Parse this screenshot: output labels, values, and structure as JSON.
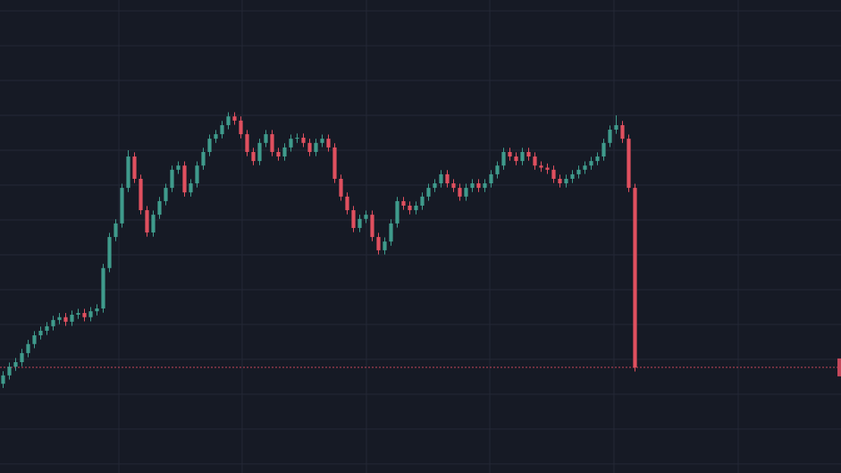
{
  "chart_data": {
    "type": "candlestick",
    "up_color": "#3f9b8c",
    "down_color": "#e0505f",
    "background": "#161a25",
    "grid_color": "#242836",
    "grid": true,
    "xlim": [
      -0.5,
      133.93
    ],
    "xticks": [
      18.5,
      38.21,
      58.07,
      77.79,
      97.64,
      117.5
    ],
    "ylim": [
      -0.26,
      13.31
    ],
    "yticks": [
      0,
      1,
      2,
      3,
      4,
      5,
      6,
      7,
      8,
      9,
      10,
      11,
      12,
      13
    ],
    "reference_line": {
      "value": 2.77,
      "color": "#c4475a"
    },
    "x": [
      0,
      1,
      2,
      3,
      4,
      5,
      6,
      7,
      8,
      9,
      10,
      11,
      12,
      13,
      14,
      15,
      16,
      17,
      18,
      19,
      20,
      21,
      22,
      23,
      24,
      25,
      26,
      27,
      28,
      29,
      30,
      31,
      32,
      33,
      34,
      35,
      36,
      37,
      38,
      39,
      40,
      41,
      42,
      43,
      44,
      45,
      46,
      47,
      48,
      49,
      50,
      51,
      52,
      53,
      54,
      55,
      56,
      57,
      58,
      59,
      60,
      61,
      62,
      63,
      64,
      65,
      66,
      67,
      68,
      69,
      70,
      71,
      72,
      73,
      74,
      75,
      76,
      77,
      78,
      79,
      80,
      81,
      82,
      83,
      84,
      85,
      86,
      87,
      88,
      89,
      90,
      91,
      92,
      93,
      94,
      95,
      96,
      97,
      98,
      99,
      100,
      101
    ],
    "open": [
      2.3,
      2.54,
      2.79,
      2.92,
      3.18,
      3.44,
      3.69,
      3.82,
      3.95,
      4.13,
      4.21,
      4.08,
      4.28,
      4.33,
      4.21,
      4.38,
      4.46,
      5.62,
      6.51,
      6.9,
      7.92,
      8.82,
      8.18,
      7.28,
      6.64,
      7.15,
      7.54,
      7.92,
      8.44,
      8.56,
      7.79,
      8.05,
      8.56,
      8.95,
      9.33,
      9.46,
      9.72,
      9.97,
      9.85,
      9.46,
      8.95,
      8.69,
      9.21,
      9.46,
      8.95,
      8.82,
      9.08,
      9.33,
      9.36,
      9.21,
      8.95,
      9.21,
      9.33,
      9.08,
      8.18,
      7.67,
      7.28,
      6.77,
      7.03,
      7.15,
      6.51,
      6.13,
      6.38,
      6.9,
      7.54,
      7.41,
      7.28,
      7.41,
      7.67,
      7.92,
      8.05,
      8.31,
      8.05,
      7.92,
      7.67,
      7.92,
      8.05,
      7.92,
      8.05,
      8.31,
      8.56,
      8.95,
      8.82,
      8.69,
      8.95,
      8.82,
      8.56,
      8.5,
      8.44,
      8.18,
      8.05,
      8.18,
      8.31,
      8.44,
      8.56,
      8.69,
      8.82,
      9.21,
      9.59,
      9.72,
      9.33,
      7.92
    ],
    "high": [
      2.66,
      2.91,
      3.04,
      3.3,
      3.56,
      3.81,
      3.94,
      4.07,
      4.25,
      4.33,
      4.33,
      4.4,
      4.45,
      4.45,
      4.5,
      4.58,
      5.74,
      6.63,
      7.02,
      8.04,
      9.0,
      8.94,
      8.3,
      7.4,
      7.27,
      7.66,
      8.04,
      8.56,
      8.68,
      8.68,
      8.17,
      8.68,
      9.07,
      9.45,
      9.58,
      9.84,
      10.09,
      10.09,
      9.97,
      9.58,
      9.07,
      9.33,
      9.58,
      9.58,
      9.07,
      9.2,
      9.45,
      9.48,
      9.48,
      9.33,
      9.33,
      9.45,
      9.45,
      9.2,
      8.3,
      7.79,
      7.4,
      7.15,
      7.27,
      7.27,
      6.63,
      6.5,
      7.02,
      7.66,
      7.66,
      7.53,
      7.53,
      7.79,
      8.04,
      8.17,
      8.43,
      8.43,
      8.17,
      8.04,
      8.04,
      8.17,
      8.17,
      8.17,
      8.43,
      8.68,
      9.07,
      9.07,
      8.94,
      9.07,
      9.07,
      8.94,
      8.68,
      8.62,
      8.56,
      8.3,
      8.3,
      8.43,
      8.56,
      8.68,
      8.81,
      8.94,
      9.33,
      9.71,
      10.0,
      9.84,
      9.45,
      8.04
    ],
    "low": [
      2.18,
      2.42,
      2.67,
      2.8,
      3.06,
      3.32,
      3.57,
      3.7,
      3.83,
      4.01,
      3.96,
      3.96,
      4.16,
      4.09,
      4.09,
      4.26,
      4.34,
      5.5,
      6.39,
      6.78,
      7.8,
      8.06,
      7.16,
      6.52,
      6.52,
      7.03,
      7.42,
      7.8,
      8.32,
      7.67,
      7.67,
      7.93,
      8.44,
      8.83,
      9.21,
      9.34,
      9.6,
      9.73,
      9.34,
      8.83,
      8.57,
      8.57,
      9.09,
      8.83,
      8.7,
      8.7,
      8.96,
      9.21,
      9.09,
      8.83,
      8.83,
      9.09,
      8.96,
      8.06,
      7.55,
      7.16,
      6.65,
      6.65,
      6.91,
      6.39,
      6.01,
      6.01,
      6.26,
      6.78,
      7.29,
      7.16,
      7.16,
      7.29,
      7.55,
      7.8,
      7.93,
      7.93,
      7.8,
      7.55,
      7.55,
      7.8,
      7.8,
      7.8,
      7.93,
      8.19,
      8.44,
      8.7,
      8.57,
      8.57,
      8.7,
      8.44,
      8.38,
      8.32,
      8.06,
      7.93,
      7.93,
      8.06,
      8.19,
      8.32,
      8.44,
      8.57,
      8.7,
      9.09,
      9.47,
      9.21,
      7.8,
      2.65
    ],
    "close": [
      2.54,
      2.79,
      2.92,
      3.18,
      3.44,
      3.69,
      3.82,
      3.95,
      4.13,
      4.21,
      4.08,
      4.28,
      4.33,
      4.21,
      4.38,
      4.46,
      5.62,
      6.51,
      6.9,
      7.92,
      8.82,
      8.18,
      7.28,
      6.64,
      7.15,
      7.54,
      7.92,
      8.44,
      8.56,
      7.79,
      8.05,
      8.56,
      8.95,
      9.33,
      9.46,
      9.72,
      9.97,
      9.85,
      9.46,
      8.95,
      8.69,
      9.21,
      9.46,
      8.95,
      8.82,
      9.08,
      9.33,
      9.36,
      9.21,
      8.95,
      9.21,
      9.33,
      9.08,
      8.18,
      7.67,
      7.28,
      6.77,
      7.03,
      7.15,
      6.51,
      6.13,
      6.38,
      6.9,
      7.54,
      7.41,
      7.28,
      7.41,
      7.67,
      7.92,
      8.05,
      8.31,
      8.05,
      7.92,
      7.67,
      7.92,
      8.05,
      7.92,
      8.05,
      8.31,
      8.56,
      8.95,
      8.82,
      8.69,
      8.95,
      8.82,
      8.56,
      8.5,
      8.44,
      8.18,
      8.05,
      8.18,
      8.31,
      8.44,
      8.56,
      8.69,
      8.82,
      9.21,
      9.59,
      9.72,
      9.33,
      7.92,
      2.77
    ]
  }
}
